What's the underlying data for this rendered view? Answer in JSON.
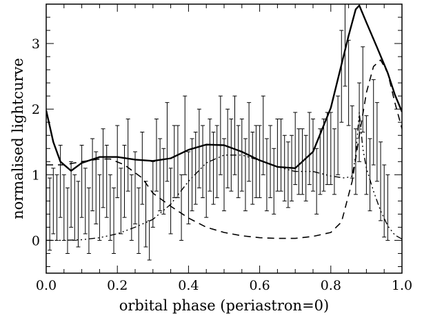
{
  "chart_data": {
    "type": "line",
    "xlabel": "orbital phase (periastron=0)",
    "ylabel": "normalised lightcurve",
    "xlim": [
      0.0,
      1.0
    ],
    "ylim": [
      -0.5,
      3.6
    ],
    "x_ticks": [
      "0.0",
      "0.2",
      "0.4",
      "0.6",
      "0.8",
      "1.0"
    ],
    "y_ticks": [
      "0",
      "1",
      "2",
      "3"
    ],
    "grid": false,
    "series": [
      {
        "style": "solid",
        "x": [
          0.0,
          0.02,
          0.04,
          0.07,
          0.1,
          0.15,
          0.2,
          0.25,
          0.3,
          0.35,
          0.4,
          0.45,
          0.5,
          0.55,
          0.6,
          0.65,
          0.7,
          0.75,
          0.8,
          0.83,
          0.85,
          0.87,
          0.88,
          0.9,
          0.93,
          0.96,
          0.98,
          1.0
        ],
        "y": [
          1.98,
          1.5,
          1.2,
          1.06,
          1.18,
          1.27,
          1.27,
          1.23,
          1.21,
          1.25,
          1.38,
          1.46,
          1.45,
          1.35,
          1.22,
          1.12,
          1.1,
          1.35,
          2.02,
          2.68,
          3.12,
          3.52,
          3.58,
          3.32,
          2.94,
          2.55,
          2.22,
          1.96
        ]
      },
      {
        "style": "dashed",
        "x": [
          0.0,
          0.05,
          0.1,
          0.15,
          0.18,
          0.22,
          0.27,
          0.3,
          0.35,
          0.4,
          0.45,
          0.5,
          0.55,
          0.6,
          0.65,
          0.7,
          0.75,
          0.8,
          0.83,
          0.86,
          0.88,
          0.9,
          0.92,
          0.94,
          0.96,
          0.98,
          1.0
        ],
        "y": [
          1.15,
          1.15,
          1.2,
          1.24,
          1.24,
          1.15,
          0.95,
          0.72,
          0.52,
          0.34,
          0.2,
          0.12,
          0.07,
          0.04,
          0.03,
          0.03,
          0.06,
          0.12,
          0.28,
          0.9,
          1.6,
          2.25,
          2.65,
          2.75,
          2.55,
          2.1,
          1.7
        ]
      },
      {
        "style": "dash-dot",
        "x": [
          0.0,
          0.05,
          0.1,
          0.15,
          0.2,
          0.25,
          0.3,
          0.35,
          0.4,
          0.45,
          0.5,
          0.55,
          0.6,
          0.65,
          0.7,
          0.75,
          0.8,
          0.84,
          0.86,
          0.87,
          0.88,
          0.89,
          0.9,
          0.92,
          0.94,
          0.96,
          0.98,
          1.0
        ],
        "y": [
          0.0,
          0.0,
          0.01,
          0.04,
          0.1,
          0.2,
          0.32,
          0.55,
          0.9,
          1.18,
          1.3,
          1.3,
          1.22,
          1.12,
          1.05,
          1.05,
          0.98,
          0.95,
          0.98,
          1.3,
          1.95,
          1.4,
          1.1,
          0.75,
          0.45,
          0.22,
          0.08,
          0.02
        ]
      }
    ],
    "errorbars": {
      "x": [
        0.01,
        0.02,
        0.03,
        0.04,
        0.05,
        0.06,
        0.07,
        0.08,
        0.09,
        0.1,
        0.11,
        0.12,
        0.13,
        0.14,
        0.15,
        0.16,
        0.17,
        0.18,
        0.19,
        0.2,
        0.21,
        0.22,
        0.23,
        0.24,
        0.25,
        0.26,
        0.27,
        0.28,
        0.29,
        0.3,
        0.31,
        0.32,
        0.33,
        0.34,
        0.35,
        0.36,
        0.37,
        0.38,
        0.39,
        0.4,
        0.41,
        0.42,
        0.43,
        0.44,
        0.45,
        0.46,
        0.47,
        0.48,
        0.49,
        0.5,
        0.51,
        0.52,
        0.53,
        0.54,
        0.55,
        0.56,
        0.57,
        0.58,
        0.59,
        0.6,
        0.61,
        0.62,
        0.63,
        0.64,
        0.65,
        0.66,
        0.67,
        0.68,
        0.69,
        0.7,
        0.71,
        0.72,
        0.73,
        0.74,
        0.75,
        0.76,
        0.77,
        0.78,
        0.79,
        0.8,
        0.81,
        0.82,
        0.83,
        0.84,
        0.85,
        0.86,
        0.87,
        0.88,
        0.89,
        0.9,
        0.91,
        0.92,
        0.93,
        0.94,
        0.95,
        0.96
      ],
      "y": [
        0.4,
        0.6,
        0.5,
        0.9,
        0.5,
        0.3,
        0.7,
        0.5,
        0.4,
        0.9,
        0.6,
        0.3,
        1.0,
        0.8,
        0.5,
        1.1,
        0.9,
        0.5,
        0.3,
        1.2,
        0.6,
        0.9,
        1.3,
        0.5,
        0.8,
        0.3,
        1.1,
        0.4,
        0.0,
        0.7,
        1.3,
        1.0,
        0.9,
        1.5,
        0.6,
        1.2,
        1.2,
        0.5,
        1.6,
        0.8,
        1.0,
        1.1,
        1.4,
        1.2,
        0.9,
        1.3,
        1.1,
        1.2,
        1.6,
        1.0,
        1.4,
        1.3,
        1.6,
        1.2,
        1.3,
        1.0,
        1.5,
        1.1,
        1.2,
        1.2,
        1.6,
        1.0,
        1.2,
        0.9,
        1.3,
        1.3,
        1.1,
        1.0,
        1.1,
        1.4,
        1.2,
        1.2,
        1.1,
        1.4,
        1.3,
        0.9,
        1.2,
        1.3,
        1.4,
        1.4,
        1.2,
        1.6,
        2.5,
        3.0,
        2.4,
        1.5,
        1.2,
        1.8,
        2.3,
        1.3,
        1.0,
        1.8,
        1.5,
        0.9,
        0.6,
        0.5
      ],
      "err": [
        0.55,
        0.5,
        0.5,
        0.55,
        0.5,
        0.5,
        0.5,
        0.5,
        0.5,
        0.55,
        0.5,
        0.5,
        0.55,
        0.55,
        0.5,
        0.6,
        0.55,
        0.5,
        0.5,
        0.55,
        0.5,
        0.55,
        0.55,
        0.5,
        0.55,
        0.5,
        0.55,
        0.5,
        0.3,
        0.5,
        0.55,
        0.55,
        0.5,
        0.6,
        0.5,
        0.55,
        0.55,
        0.5,
        0.6,
        0.55,
        0.55,
        0.55,
        0.6,
        0.55,
        0.55,
        0.55,
        0.55,
        0.55,
        0.6,
        0.55,
        0.6,
        0.55,
        0.6,
        0.55,
        0.55,
        0.55,
        0.6,
        0.55,
        0.55,
        0.55,
        0.6,
        0.55,
        0.55,
        0.5,
        0.55,
        0.55,
        0.5,
        0.5,
        0.5,
        0.55,
        0.5,
        0.5,
        0.5,
        0.55,
        0.55,
        0.5,
        0.5,
        0.55,
        0.55,
        0.55,
        0.5,
        0.6,
        0.7,
        0.65,
        0.65,
        0.55,
        0.5,
        0.6,
        0.65,
        0.6,
        0.55,
        0.65,
        0.6,
        0.6,
        0.55,
        0.5
      ]
    }
  }
}
